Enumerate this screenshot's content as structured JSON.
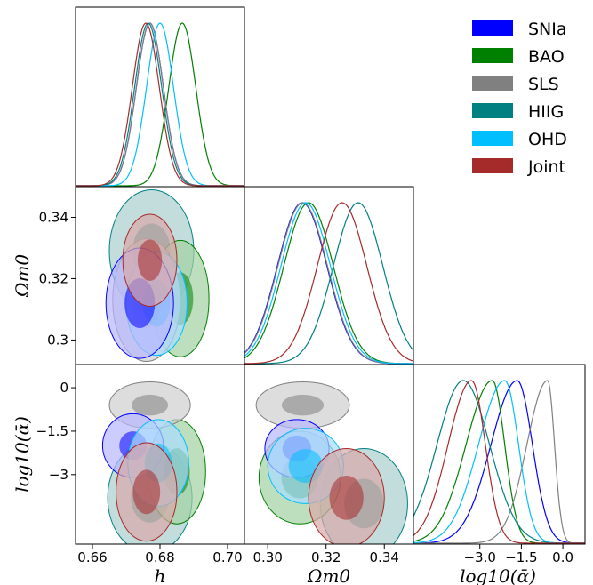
{
  "chart_data": {
    "type": "triangle-corner-plot",
    "title": "",
    "parameters": [
      {
        "key": "h",
        "label": "h",
        "range": [
          0.655,
          0.705
        ],
        "ticks": [
          0.66,
          0.68,
          0.7
        ],
        "tick_labels": [
          "0.66",
          "0.68",
          "0.70"
        ]
      },
      {
        "key": "Om",
        "label": "Ωm0",
        "range": [
          0.292,
          0.35
        ],
        "ticks": [
          0.3,
          0.32,
          0.34
        ],
        "tick_labels_x": [
          "0.30",
          "0.32",
          "0.34"
        ],
        "tick_labels_y": [
          "0.3",
          "0.32",
          "0.34"
        ]
      },
      {
        "key": "la",
        "label": "log10(ᾱ)",
        "range": [
          -5.4,
          0.8
        ],
        "ticks": [
          -3.0,
          -1.5,
          0.0
        ],
        "tick_labels_x": [
          "−3.0",
          "−1.5",
          "0.0"
        ],
        "tick_labels_y": [
          "−3",
          "−1.5",
          "0"
        ]
      }
    ],
    "legend": {
      "position": "top-right"
    },
    "series": [
      {
        "name": "SNIa",
        "color": "#0000ff",
        "h": [
          0.677,
          0.004
        ],
        "Om": [
          0.3118,
          0.0085
        ],
        "la": [
          -1.65,
          0.95,
          -2.6,
          0.55
        ]
      },
      {
        "name": "BAO",
        "color": "#008000",
        "h": [
          0.6866,
          0.004
        ],
        "Om": [
          0.314,
          0.0085
        ],
        "la": [
          -2.55,
          0.95,
          -3.3,
          0.45
        ]
      },
      {
        "name": "SLS",
        "color": "#808080",
        "h": [
          0.677,
          0.004
        ],
        "Om": [
          0.312,
          0.0085
        ],
        "la": [
          -0.55,
          0.75,
          -0.55,
          0.25
        ]
      },
      {
        "name": "HIIG",
        "color": "#008080",
        "h": [
          0.6765,
          0.004
        ],
        "Om": [
          0.331,
          0.0085
        ],
        "la": [
          -3.6,
          0.95,
          -3.6,
          0.95
        ]
      },
      {
        "name": "OHD",
        "color": "#00bfff",
        "h": [
          0.68,
          0.004
        ],
        "Om": [
          0.313,
          0.0085
        ],
        "la": [
          -2.1,
          0.95,
          -2.5,
          0.5
        ]
      },
      {
        "name": "Joint",
        "color": "#a52a2a",
        "h": [
          0.6758,
          0.004
        ],
        "Om": [
          0.3255,
          0.0085
        ],
        "la": [
          -3.3,
          0.85,
          -3.05,
          0.5
        ]
      }
    ],
    "contours": {
      "h_Om": [
        {
          "name": "HIIG",
          "color": "#008080",
          "fill": "#a9cfcf",
          "c": [
            0.6775,
            0.329
          ],
          "r": [
            0.0125,
            0.02
          ]
        },
        {
          "name": "BAO",
          "color": "#008000",
          "fill": "#a3d1a3",
          "c": [
            0.686,
            0.3135
          ],
          "r": [
            0.0085,
            0.019
          ]
        },
        {
          "name": "SLS",
          "color": "#808080",
          "fill": "#cfcfcf",
          "c": [
            0.676,
            0.313
          ],
          "r": [
            0.01,
            0.02
          ]
        },
        {
          "name": "OHD",
          "color": "#00bfff",
          "fill": "#a8dcff",
          "c": [
            0.679,
            0.312
          ],
          "r": [
            0.009,
            0.017
          ]
        },
        {
          "name": "SNIa",
          "color": "#0000ff",
          "fill": "#b6b6ff",
          "c": [
            0.674,
            0.312
          ],
          "r": [
            0.01,
            0.018
          ]
        },
        {
          "name": "Joint",
          "color": "#a52a2a",
          "fill": "#d8a8a8",
          "c": [
            0.677,
            0.326
          ],
          "r": [
            0.008,
            0.015
          ]
        }
      ],
      "h_la": [
        {
          "name": "HIIG",
          "color": "#008080",
          "fill": "#a9cfcf",
          "c": [
            0.677,
            -3.8
          ],
          "r": [
            0.0125,
            1.9
          ]
        },
        {
          "name": "BAO",
          "color": "#008000",
          "fill": "#a3d1a3",
          "c": [
            0.685,
            -2.9
          ],
          "r": [
            0.0085,
            1.8
          ]
        },
        {
          "name": "SLS",
          "color": "#808080",
          "fill": "#cfcfcf",
          "c": [
            0.677,
            -0.6
          ],
          "r": [
            0.012,
            0.8
          ]
        },
        {
          "name": "SNIa",
          "color": "#0000ff",
          "fill": "#b6b6ff",
          "c": [
            0.672,
            -2.0
          ],
          "r": [
            0.009,
            1.1
          ]
        },
        {
          "name": "OHD",
          "color": "#00bfff",
          "fill": "#a8dcff",
          "c": [
            0.6795,
            -2.6
          ],
          "r": [
            0.009,
            1.5
          ]
        },
        {
          "name": "Joint",
          "color": "#a52a2a",
          "fill": "#d8a8a8",
          "c": [
            0.676,
            -3.6
          ],
          "r": [
            0.009,
            1.7
          ]
        }
      ],
      "Om_la": [
        {
          "name": "HIIG",
          "color": "#008080",
          "fill": "#a9cfcf",
          "c": [
            0.333,
            -4.0
          ],
          "r": [
            0.015,
            1.9
          ]
        },
        {
          "name": "BAO",
          "color": "#008000",
          "fill": "#a3d1a3",
          "c": [
            0.311,
            -3.1
          ],
          "r": [
            0.014,
            1.6
          ]
        },
        {
          "name": "SLS",
          "color": "#808080",
          "fill": "#cfcfcf",
          "c": [
            0.312,
            -0.6
          ],
          "r": [
            0.016,
            0.8
          ]
        },
        {
          "name": "SNIa",
          "color": "#0000ff",
          "fill": "#b6b6ff",
          "c": [
            0.31,
            -2.1
          ],
          "r": [
            0.011,
            1.0
          ]
        },
        {
          "name": "OHD",
          "color": "#00bfff",
          "fill": "#a8dcff",
          "c": [
            0.313,
            -2.7
          ],
          "r": [
            0.013,
            1.3
          ]
        },
        {
          "name": "Joint",
          "color": "#a52a2a",
          "fill": "#d8a8a8",
          "c": [
            0.327,
            -3.8
          ],
          "r": [
            0.013,
            1.7
          ]
        }
      ]
    }
  }
}
